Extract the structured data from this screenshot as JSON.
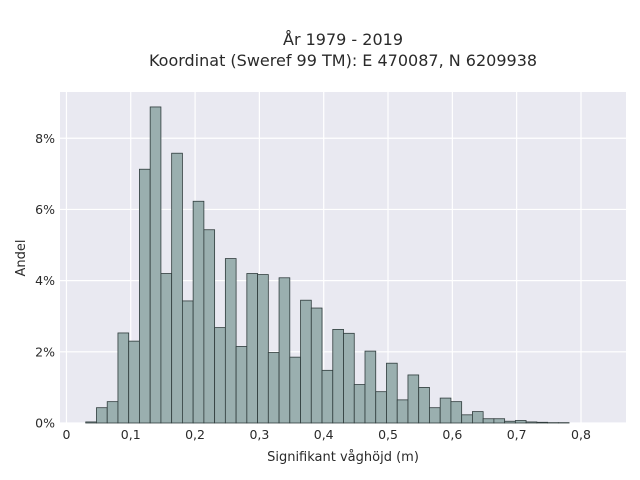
{
  "chart_data": {
    "type": "bar",
    "title": "År 1979 - 2019",
    "subtitle": "Koordinat (Sweref 99 TM): E 470087, N 6209938",
    "xlabel": "Signifikant våghöjd (m)",
    "ylabel": "Andel",
    "xlim": [
      -0.01,
      0.87
    ],
    "ylim": [
      0,
      0.093
    ],
    "xticks": [
      0,
      0.1,
      0.2,
      0.3,
      0.4,
      0.5,
      0.6,
      0.7,
      0.8
    ],
    "xtick_labels": [
      "0",
      "0,1",
      "0,2",
      "0,3",
      "0,4",
      "0,5",
      "0,6",
      "0,7",
      "0,8"
    ],
    "yticks": [
      0,
      0.02,
      0.04,
      0.06,
      0.08
    ],
    "ytick_labels": [
      "0%",
      "2%",
      "4%",
      "6%",
      "8%"
    ],
    "grid": true,
    "background_color": "#e9e9f1",
    "bar_color": "#9aafaf",
    "bar_edge_color": "#2f3c3c",
    "bin_width": 0.0167,
    "bins_start": [
      0.03,
      0.0467,
      0.0634,
      0.0801,
      0.0968,
      0.1135,
      0.1302,
      0.1469,
      0.1636,
      0.1803,
      0.197,
      0.2137,
      0.2304,
      0.2471,
      0.2638,
      0.2805,
      0.2972,
      0.3139,
      0.3306,
      0.3473,
      0.364,
      0.3807,
      0.3974,
      0.4141,
      0.4308,
      0.4475,
      0.4642,
      0.4809,
      0.4976,
      0.5143,
      0.531,
      0.5477,
      0.5644,
      0.5811,
      0.5978,
      0.6145,
      0.6312,
      0.6479,
      0.6646,
      0.6813,
      0.698,
      0.7147,
      0.7314,
      0.7481,
      0.7648
    ],
    "values": [
      0.0003,
      0.0043,
      0.006,
      0.0253,
      0.023,
      0.0713,
      0.0888,
      0.042,
      0.0758,
      0.0343,
      0.0623,
      0.0543,
      0.0268,
      0.0462,
      0.0215,
      0.042,
      0.0417,
      0.0198,
      0.0408,
      0.0185,
      0.0345,
      0.0323,
      0.0148,
      0.0263,
      0.0252,
      0.0108,
      0.0202,
      0.0088,
      0.0168,
      0.0065,
      0.0135,
      0.01,
      0.0043,
      0.007,
      0.006,
      0.0023,
      0.0032,
      0.0012,
      0.0012,
      0.0005,
      0.0007,
      0.0003,
      0.0002,
      0.0001,
      0.0001
    ]
  }
}
